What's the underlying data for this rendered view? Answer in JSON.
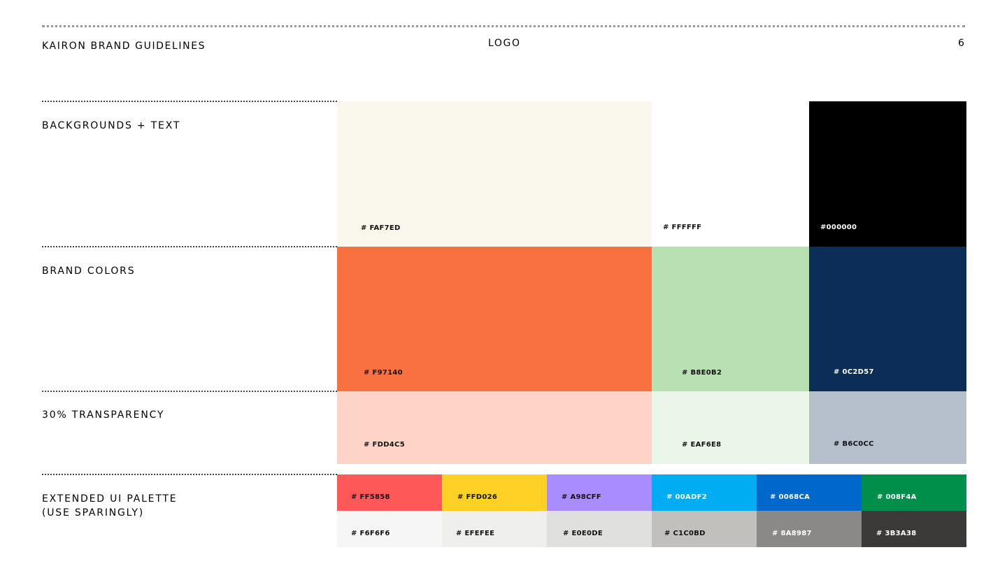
{
  "header": {
    "brand": "KAIRON BRAND GUIDELINES",
    "section": "LOGO",
    "page_number": "6"
  },
  "sections": {
    "backgrounds": "BACKGROUNDS + TEXT",
    "brand_colors": "BRAND COLORS",
    "transparency": "30% TRANSPARENCY",
    "extended_line1": "EXTENDED UI PALETTE",
    "extended_line2": "(USE SPARINGLY)"
  },
  "backgrounds": [
    {
      "label": "# FAF7ED",
      "color": "#FAF7ED"
    },
    {
      "label": "# FFFFFF",
      "color": "#FFFFFF"
    },
    {
      "label": "#000000",
      "color": "#000000"
    }
  ],
  "brand_colors": [
    {
      "label": "# F97140",
      "color": "#F97140"
    },
    {
      "label": "# B8E0B2",
      "color": "#B8E0B2"
    },
    {
      "label": "# 0C2D57",
      "color": "#0C2D57"
    }
  ],
  "transparency": [
    {
      "label": "# FDD4C5",
      "color": "#FDD4C5"
    },
    {
      "label": "# EAF6E8",
      "color": "#EAF6E8"
    },
    {
      "label": "# B6C0CC",
      "color": "#B6C0CC"
    }
  ],
  "extended_top": [
    {
      "label": "# FF5858",
      "color": "#FF5858"
    },
    {
      "label": "# FFD026",
      "color": "#FFD026"
    },
    {
      "label": "# A98CFF",
      "color": "#A98CFF"
    },
    {
      "label": "# 00ADF2",
      "color": "#00ADF2"
    },
    {
      "label": "# 0068CA",
      "color": "#0068CA"
    },
    {
      "label": "# 008F4A",
      "color": "#008F4A"
    }
  ],
  "extended_bottom": [
    {
      "label": "# F6F6F6",
      "color": "#F6F6F6"
    },
    {
      "label": "# EFEFEE",
      "color": "#EFEFEE"
    },
    {
      "label": "# E0E0DE",
      "color": "#E0E0DE"
    },
    {
      "label": "# C1C0BD",
      "color": "#C1C0BD"
    },
    {
      "label": "# 8A8987",
      "color": "#8A8987"
    },
    {
      "label": "# 3B3A38",
      "color": "#3B3A38"
    }
  ]
}
